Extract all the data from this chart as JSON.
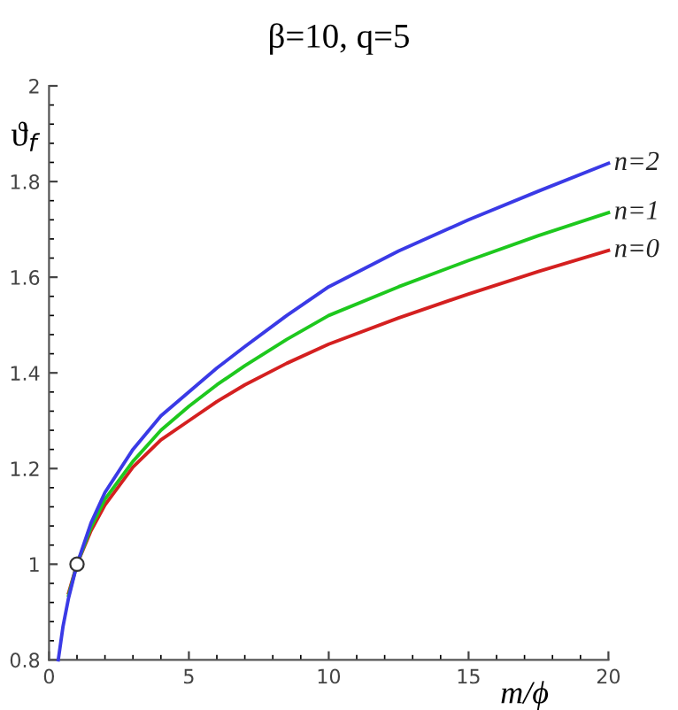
{
  "chart_data": {
    "type": "line",
    "title": "β=10, q=5",
    "xlabel": "m/ϕ",
    "ylabel": "ϑ$_{f}$",
    "x": [
      0.33,
      0.5,
      0.7,
      1,
      1.5,
      2,
      3,
      4,
      5,
      6,
      7,
      8.5,
      10,
      12.5,
      15,
      17.5,
      20
    ],
    "series": [
      {
        "name": "n=2",
        "color": "#3a3ae6",
        "values": [
          0.8,
          0.87,
          0.93,
          1.0,
          1.086,
          1.15,
          1.24,
          1.31,
          1.36,
          1.41,
          1.455,
          1.52,
          1.58,
          1.655,
          1.72,
          1.78,
          1.838
        ]
      },
      {
        "name": "n=1",
        "color": "#1ec81e",
        "values": [
          null,
          null,
          0.935,
          1.0,
          1.077,
          1.136,
          1.215,
          1.28,
          1.33,
          1.375,
          1.415,
          1.47,
          1.52,
          1.58,
          1.635,
          1.687,
          1.735
        ]
      },
      {
        "name": "n=0",
        "color": "#d42020",
        "values": [
          null,
          null,
          0.94,
          1.0,
          1.07,
          1.124,
          1.203,
          1.26,
          1.3,
          1.34,
          1.375,
          1.42,
          1.46,
          1.515,
          1.565,
          1.612,
          1.656
        ]
      },
      {
        "type": "scatter",
        "x": [
          1
        ],
        "values": [
          1.0
        ],
        "color": "#ffffff",
        "marker": "circle"
      }
    ],
    "xlim": [
      0,
      20
    ],
    "ylim": [
      0.8,
      2
    ],
    "xticks": [
      0,
      5,
      10,
      15,
      20
    ],
    "yticks": [
      0.8,
      1,
      1.2,
      1.4,
      1.6,
      1.8,
      2
    ],
    "grid": false,
    "legend": false
  }
}
